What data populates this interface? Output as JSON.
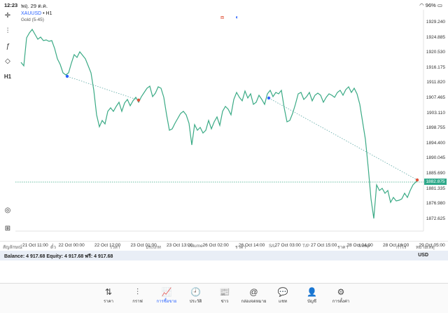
{
  "status": {
    "time": "12:23",
    "date": "พฤ. 29 ต.ค.",
    "battery": "96%"
  },
  "chart": {
    "symbol": "XAUUSD",
    "timeframe": "H1",
    "indicator": "Gold (5-45)",
    "price_labels": [
      "1929.240",
      "1924.885",
      "1920.530",
      "1916.175",
      "1911.820",
      "1907.465",
      "1903.110",
      "1898.755",
      "1894.400",
      "1890.045",
      "1885.690",
      "1881.335",
      "1876.980",
      "1872.625"
    ],
    "current_price": "1882.875",
    "time_labels": [
      "21 Oct 11:00",
      "22 Oct 00:00",
      "22 Oct 12:00",
      "23 Oct 01:00",
      "23 Oct 13:00",
      "26 Oct 02:00",
      "26 Oct 14:00",
      "27 Oct 03:00",
      "27 Oct 15:00",
      "28 Oct 04:00",
      "28 Oct 16:00",
      "29 Oct 05:00"
    ],
    "colors": {
      "line": "#3aaa85",
      "buy": "#2962ff",
      "sell": "#e0523a",
      "trend": "#5fa9a6"
    }
  },
  "table_header": [
    "สัญลักษณ์",
    "ตั๋ว",
    "เวลา",
    "ประเภท",
    "Volume",
    "ราคา",
    "S/L",
    "T/P",
    "ราคา",
    "Swap",
    "กำไร",
    "หมายเหตุ"
  ],
  "balance": {
    "text": "Balance: 4 917.68 Equity: 4 917.68 ฟรี: 4 917.68",
    "currency": "USD"
  },
  "tabs": [
    {
      "label": "ราคา",
      "icon": "⇅"
    },
    {
      "label": "กราฟ",
      "icon": "⫶"
    },
    {
      "label": "การซื้อขาย",
      "icon": "📈",
      "active": true
    },
    {
      "label": "ประวัติ",
      "icon": "🕘"
    },
    {
      "label": "ข่าว",
      "icon": "📰"
    },
    {
      "label": "กล่องจดหมาย",
      "icon": "@"
    },
    {
      "label": "แชท",
      "icon": "💬"
    },
    {
      "label": "บัญชี",
      "icon": "👤"
    },
    {
      "label": "การตั้งค่า",
      "icon": "⚙"
    }
  ]
}
